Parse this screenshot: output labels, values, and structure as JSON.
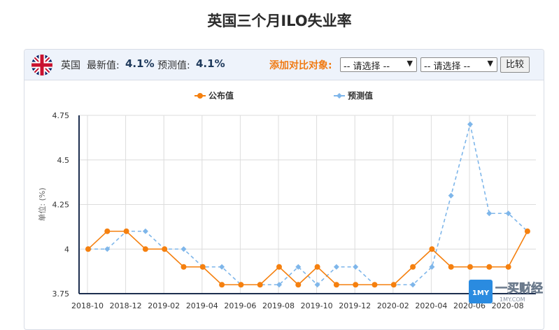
{
  "page": {
    "title": "英国三个月ILO失业率"
  },
  "toolbar": {
    "country": "英国",
    "latest_label": "最新值:",
    "latest_value": "4.1%",
    "forecast_label": "预测值:",
    "forecast_value": "4.1%",
    "compare_label": "添加对比对象:",
    "select1": "-- 请选择 --",
    "select2": "-- 请选择 --",
    "compare_button": "比较"
  },
  "watermark": {
    "brand": "一买财经",
    "site": "1MY.COM",
    "logo_text": "1MY"
  },
  "colors": {
    "published": "#f5800f",
    "forecast": "#7eb6ea",
    "axis": "#1d2f4f"
  },
  "chart_data": {
    "type": "line",
    "legend_position": "top-center",
    "grid": true,
    "ylabel": "单位: (%)",
    "ylim": [
      3.75,
      4.75
    ],
    "yticks": [
      "3.75",
      "4",
      "4.25",
      "4.5",
      "4.75"
    ],
    "x": [
      "2018-10",
      "2018-11",
      "2018-12",
      "2019-01",
      "2019-02",
      "2019-03",
      "2019-04",
      "2019-05",
      "2019-06",
      "2019-07",
      "2019-08",
      "2019-09",
      "2019-10",
      "2019-11",
      "2019-12",
      "2020-01",
      "2020-02",
      "2020-03",
      "2020-04",
      "2020-05",
      "2020-06",
      "2020-07",
      "2020-08",
      "2020-09"
    ],
    "xtick_labels": [
      "2018-10",
      "2018-12",
      "2019-02",
      "2019-04",
      "2019-06",
      "2019-08",
      "2019-10",
      "2019-12",
      "2020-02",
      "2020-04",
      "2020-06",
      "2020-08"
    ],
    "series": [
      {
        "name": "公布值",
        "style": "solid",
        "values": [
          4.0,
          4.1,
          4.1,
          4.0,
          4.0,
          3.9,
          3.9,
          3.8,
          3.8,
          3.8,
          3.9,
          3.8,
          3.9,
          3.8,
          3.8,
          3.8,
          3.8,
          3.9,
          4.0,
          3.9,
          3.9,
          3.9,
          3.9,
          4.1
        ]
      },
      {
        "name": "预测值",
        "style": "dashed",
        "values": [
          4.0,
          4.0,
          4.1,
          4.1,
          4.0,
          4.0,
          3.9,
          3.9,
          3.8,
          3.8,
          3.8,
          3.9,
          3.8,
          3.9,
          3.9,
          3.8,
          3.8,
          3.8,
          3.9,
          4.3,
          4.7,
          4.2,
          4.2,
          4.1
        ]
      }
    ]
  }
}
